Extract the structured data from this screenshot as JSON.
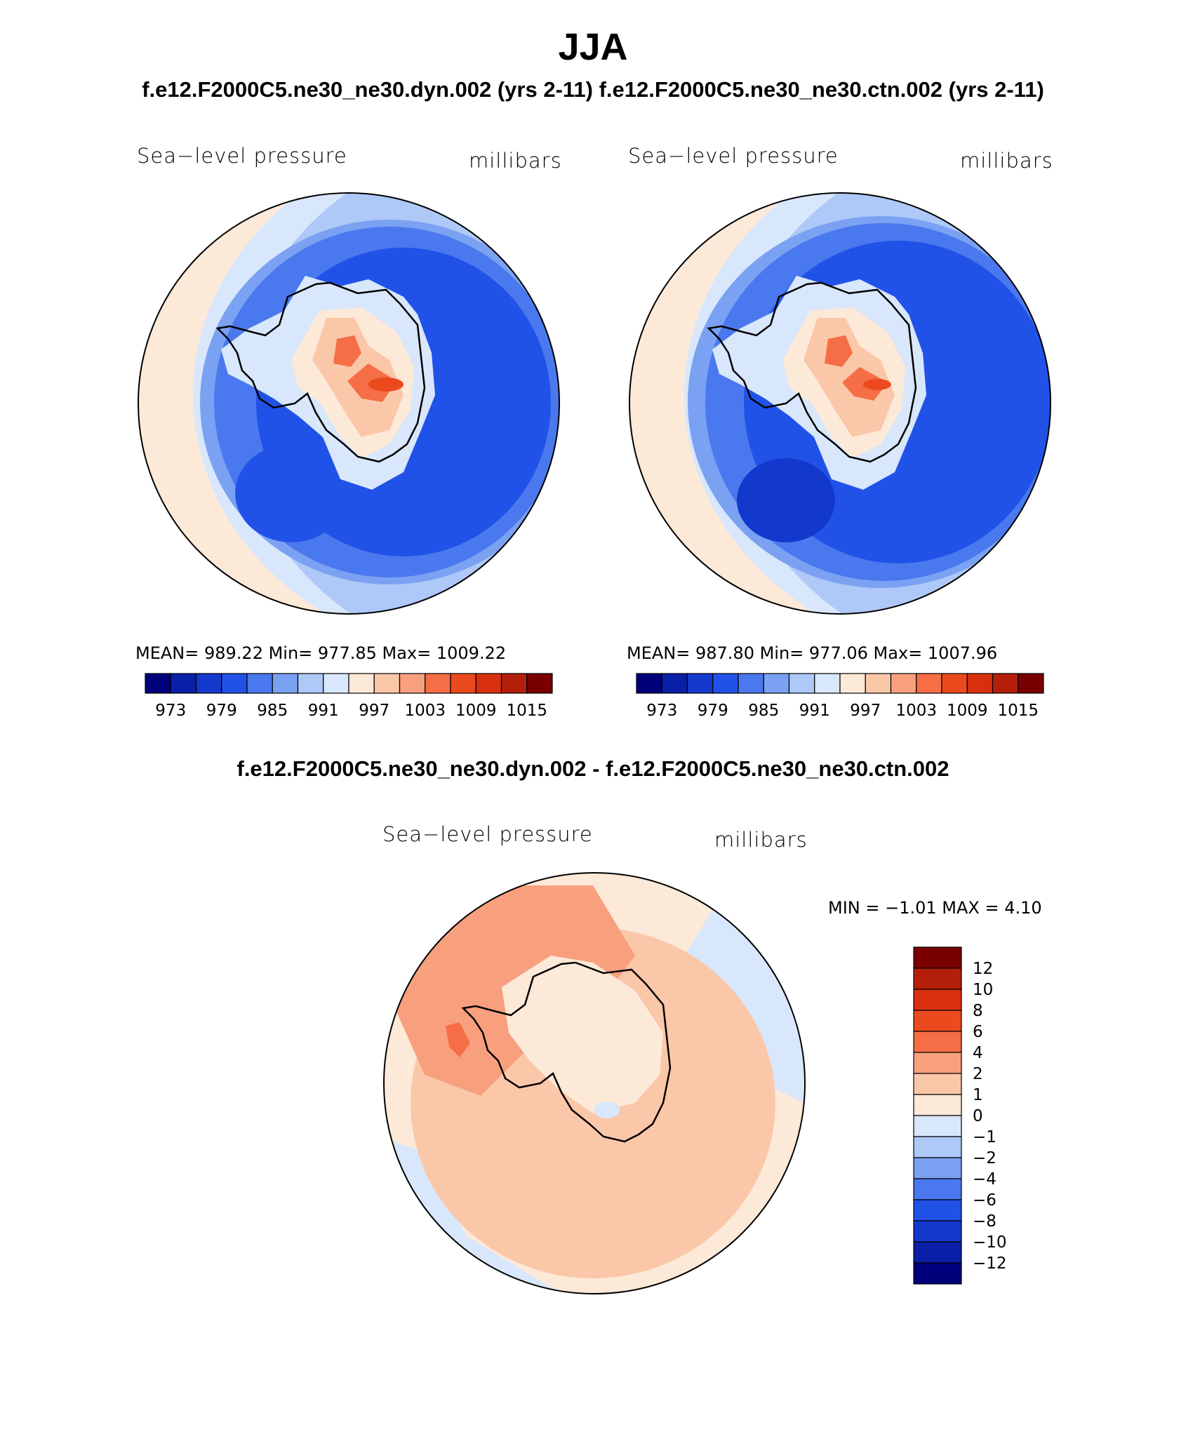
{
  "figure": {
    "season": "JJA",
    "case_titles": "f.e12.F2000C5.ne30_ne30.dyn.002 (yrs 2-11)  f.e12.F2000C5.ne30_ne30.ctn.002 (yrs 2-11)",
    "diff_title": "f.e12.F2000C5.ne30_ne30.dyn.002 - f.e12.F2000C5.ne30_ne30.ctn.002"
  },
  "panels": [
    {
      "variable": "Sea−level pressure",
      "units": "millibars",
      "stats": "MEAN=  989.22   Min=  977.85   Max=  1009.22"
    },
    {
      "variable": "Sea−level pressure",
      "units": "millibars",
      "stats": "MEAN=  987.80   Min=  977.06   Max=  1007.96"
    }
  ],
  "diff_panel": {
    "variable": "Sea−level pressure",
    "units": "millibars",
    "stats": "MIN =   −1.01  MAX =     4.10"
  },
  "colorbar_abs": {
    "labels": [
      "973",
      "979",
      "985",
      "991",
      "997",
      "1003",
      "1009",
      "1015"
    ],
    "colors": [
      "#00007a",
      "#0a1fa8",
      "#1239cc",
      "#2152e8",
      "#4a78ee",
      "#7ba1f2",
      "#aec8f7",
      "#d8e7fb",
      "#fde9d8",
      "#fbc7a9",
      "#f8a07e",
      "#f56e45",
      "#eb4a1e",
      "#d8300f",
      "#b31f0a",
      "#7a0000"
    ]
  },
  "colorbar_diff": {
    "labels": [
      "12",
      "10",
      "8",
      "6",
      "4",
      "2",
      "1",
      "0",
      "−1",
      "−2",
      "−4",
      "−6",
      "−8",
      "−10",
      "−12"
    ],
    "colors": [
      "#7a0000",
      "#b31f0a",
      "#d8300f",
      "#eb4a1e",
      "#f56e45",
      "#f8a07e",
      "#fbc7a9",
      "#fde9d8",
      "#d8e7fb",
      "#aec8f7",
      "#7ba1f2",
      "#4a78ee",
      "#2152e8",
      "#1239cc",
      "#0a1fa8",
      "#00007a"
    ]
  }
}
